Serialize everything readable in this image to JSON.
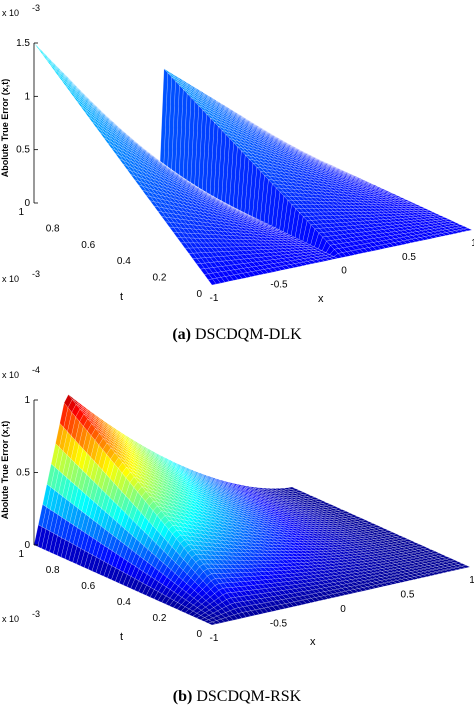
{
  "chart_data": [
    {
      "type": "surface",
      "caption_letter": "(a)",
      "caption_text": "DSCDQM-DLK",
      "zlabel": "Abolute True Error (x,t)",
      "xlabel": "x",
      "tlabel": "t",
      "z_exponent": "x 10",
      "z_exponent_power": "-3",
      "t_exponent": "x 10",
      "t_exponent_power": "-3",
      "z_ticks": [
        "0",
        "0.5",
        "1",
        "1.5"
      ],
      "t_ticks": [
        "0",
        "0.2",
        "0.4",
        "0.6",
        "0.8",
        "1"
      ],
      "x_ticks": [
        "-1",
        "-0.5",
        "0",
        "0.5",
        "1"
      ],
      "xlim": [
        -1,
        1
      ],
      "tlim": [
        0,
        0.001
      ],
      "zlim": [
        0,
        0.0015
      ],
      "peaks": [
        {
          "x": -1,
          "t": 0.001,
          "z": 0.0015
        },
        {
          "x": 0,
          "t": 0.001,
          "z": 0.001
        }
      ],
      "colormap": "jet",
      "grid": false
    },
    {
      "type": "surface",
      "caption_letter": "(b)",
      "caption_text": "DSCDQM-RSK",
      "zlabel": "Abolute True Error (x,t)",
      "xlabel": "x",
      "tlabel": "t",
      "z_exponent": "x 10",
      "z_exponent_power": "-4",
      "t_exponent": "x 10",
      "t_exponent_power": "-3",
      "z_ticks": [
        "0",
        "0.5",
        "1"
      ],
      "t_ticks": [
        "0",
        "0.2",
        "0.4",
        "0.6",
        "0.8",
        "1"
      ],
      "x_ticks": [
        "-1",
        "-0.5",
        "0",
        "0.5",
        "1"
      ],
      "xlim": [
        -1,
        1
      ],
      "tlim": [
        0,
        0.001
      ],
      "zlim": [
        0,
        0.0001
      ],
      "peaks": [
        {
          "x": -0.75,
          "t": 0.001,
          "z": 0.0001
        }
      ],
      "colormap": "jet",
      "grid": false
    }
  ]
}
